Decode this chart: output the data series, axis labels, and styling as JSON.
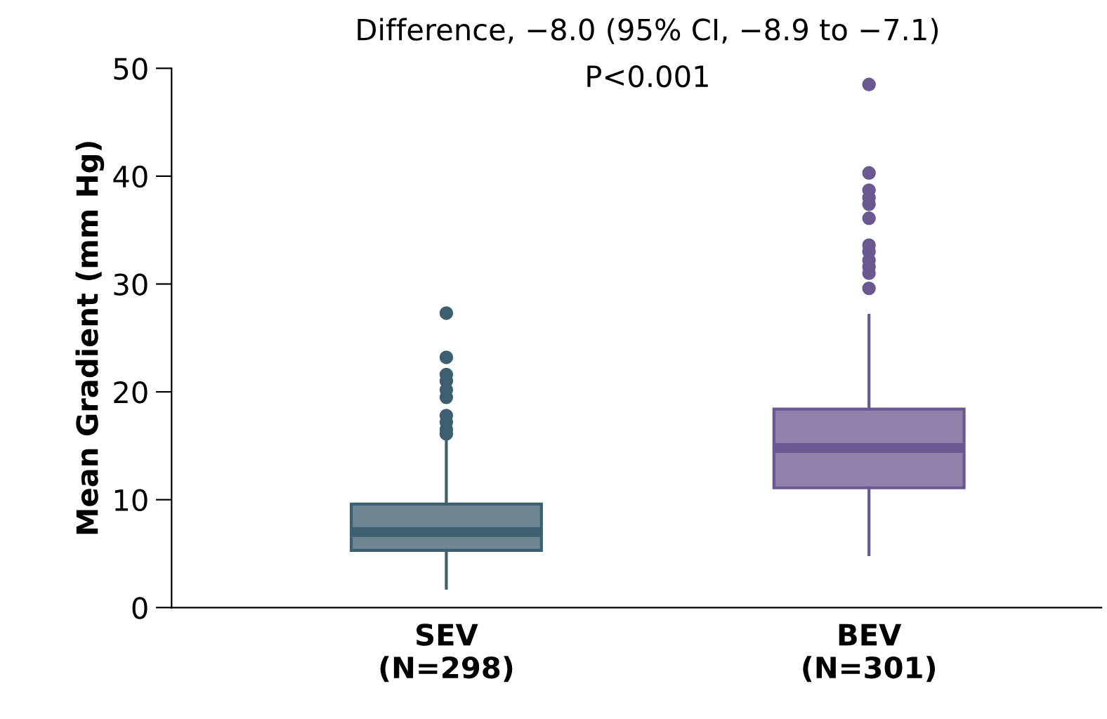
{
  "chart_data": {
    "type": "box",
    "title": "Difference, −8.0 (95% CI, −8.9 to −7.1)",
    "subtitle": "P<0.001",
    "ylabel": "Mean Gradient (mm Hg)",
    "categories": [
      "SEV\n(N=298)",
      "BEV\n(N=301)"
    ],
    "colors": [
      "#3d5f6f",
      "#6b5891"
    ],
    "boxes": [
      {
        "low": 1.8,
        "q1": 5.3,
        "median": 7.0,
        "q3": 9.6,
        "high": 15.9,
        "outliers": [
          16.1,
          16.5,
          17.2,
          17.8,
          19.5,
          20.2,
          21.0,
          21.6,
          23.2,
          27.3
        ]
      },
      {
        "low": 4.9,
        "q1": 11.1,
        "median": 14.8,
        "q3": 18.4,
        "high": 27.1,
        "outliers": [
          29.6,
          31.0,
          31.6,
          32.2,
          33.0,
          33.6,
          36.1,
          37.4,
          38.0,
          38.7,
          40.3,
          48.5
        ]
      }
    ],
    "ylim": [
      0,
      50
    ],
    "yticks": [
      0,
      10,
      20,
      30,
      40,
      50
    ],
    "grid": false,
    "legend": false
  }
}
